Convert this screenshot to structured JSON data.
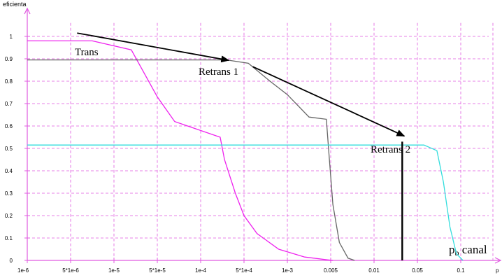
{
  "chart_data": {
    "type": "line",
    "ylabel": "eficienta",
    "xlabel_main": "p",
    "xlabel_sub": "b",
    "xlabel_tail": " canal",
    "xlabel_corner": "p",
    "x_ticks": [
      "1e-6",
      "5*1e-6",
      "1e-5",
      "5*1e-5",
      "1e-4",
      "5*1e-4",
      "1e-3",
      "0.005",
      "0.01",
      "0.05",
      "0.1"
    ],
    "y_ticks": [
      "0",
      "0.1",
      "0.2",
      "0.3",
      "0.4",
      "0.5",
      "0.6",
      "0.7",
      "0.8",
      "0.9",
      "1"
    ],
    "ylim": [
      0,
      1
    ],
    "grid": true,
    "annotations": [
      {
        "text": "Trans"
      },
      {
        "text": "Retrans 1"
      },
      {
        "text": "Retrans 2"
      }
    ],
    "series": [
      {
        "color": "#ee22ee",
        "points": [
          [
            0,
            0.98
          ],
          [
            1.5,
            0.98
          ],
          [
            2.4,
            0.94
          ],
          [
            3.0,
            0.73
          ],
          [
            3.4,
            0.62
          ],
          [
            4.45,
            0.55
          ],
          [
            4.55,
            0.45
          ],
          [
            4.8,
            0.3
          ],
          [
            5.0,
            0.2
          ],
          [
            5.3,
            0.12
          ],
          [
            5.8,
            0.05
          ],
          [
            6.4,
            0.015
          ],
          [
            6.9,
            0.003
          ],
          [
            7.05,
            0
          ]
        ]
      },
      {
        "color": "#666666",
        "points": [
          [
            0,
            0.895
          ],
          [
            4.6,
            0.895
          ],
          [
            5.1,
            0.88
          ],
          [
            5.6,
            0.8
          ],
          [
            6.0,
            0.74
          ],
          [
            6.5,
            0.64
          ],
          [
            6.9,
            0.63
          ],
          [
            6.95,
            0.5
          ],
          [
            7.05,
            0.25
          ],
          [
            7.2,
            0.08
          ],
          [
            7.4,
            0.01
          ],
          [
            7.55,
            0
          ]
        ]
      },
      {
        "color": "#33dddd",
        "points": [
          [
            0,
            0.515
          ],
          [
            9.15,
            0.515
          ],
          [
            9.45,
            0.49
          ],
          [
            9.6,
            0.35
          ],
          [
            9.75,
            0.15
          ],
          [
            9.9,
            0.03
          ],
          [
            10.05,
            0
          ]
        ]
      }
    ],
    "vertical_marker": {
      "x": 8.65,
      "y_from": 0,
      "y_to": 0.53,
      "color": "#000000"
    },
    "arrows": [
      {
        "from": [
          1.15,
          1.015
        ],
        "to": [
          4.65,
          0.893
        ]
      },
      {
        "from": [
          5.2,
          0.865
        ],
        "to": [
          8.7,
          0.555
        ]
      }
    ]
  }
}
